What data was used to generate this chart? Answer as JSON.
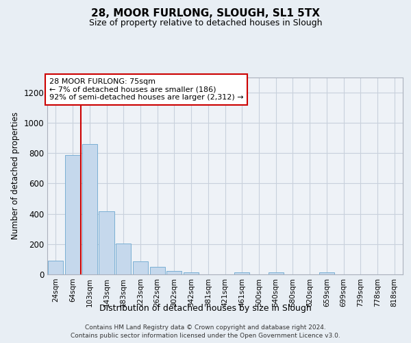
{
  "title": "28, MOOR FURLONG, SLOUGH, SL1 5TX",
  "subtitle": "Size of property relative to detached houses in Slough",
  "xlabel": "Distribution of detached houses by size in Slough",
  "ylabel": "Number of detached properties",
  "bar_color": "#c5d8ec",
  "bar_edge_color": "#7aafd4",
  "categories": [
    "24sqm",
    "64sqm",
    "103sqm",
    "143sqm",
    "183sqm",
    "223sqm",
    "262sqm",
    "302sqm",
    "342sqm",
    "381sqm",
    "421sqm",
    "461sqm",
    "500sqm",
    "540sqm",
    "580sqm",
    "620sqm",
    "659sqm",
    "699sqm",
    "739sqm",
    "778sqm",
    "818sqm"
  ],
  "values": [
    90,
    785,
    860,
    415,
    205,
    85,
    50,
    22,
    15,
    0,
    0,
    13,
    0,
    12,
    0,
    0,
    12,
    0,
    0,
    0,
    0
  ],
  "ylim": [
    0,
    1300
  ],
  "yticks": [
    0,
    200,
    400,
    600,
    800,
    1000,
    1200
  ],
  "red_line_x": 1.5,
  "annotation_line1": "28 MOOR FURLONG: 75sqm",
  "annotation_line2": "← 7% of detached houses are smaller (186)",
  "annotation_line3": "92% of semi-detached houses are larger (2,312) →",
  "marker_color": "#cc0000",
  "footer_line1": "Contains HM Land Registry data © Crown copyright and database right 2024.",
  "footer_line2": "Contains public sector information licensed under the Open Government Licence v3.0.",
  "bg_color": "#e8eef4",
  "plot_bg_color": "#eef2f7",
  "grid_color": "#c8d0dc",
  "spine_color": "#aab0bc"
}
